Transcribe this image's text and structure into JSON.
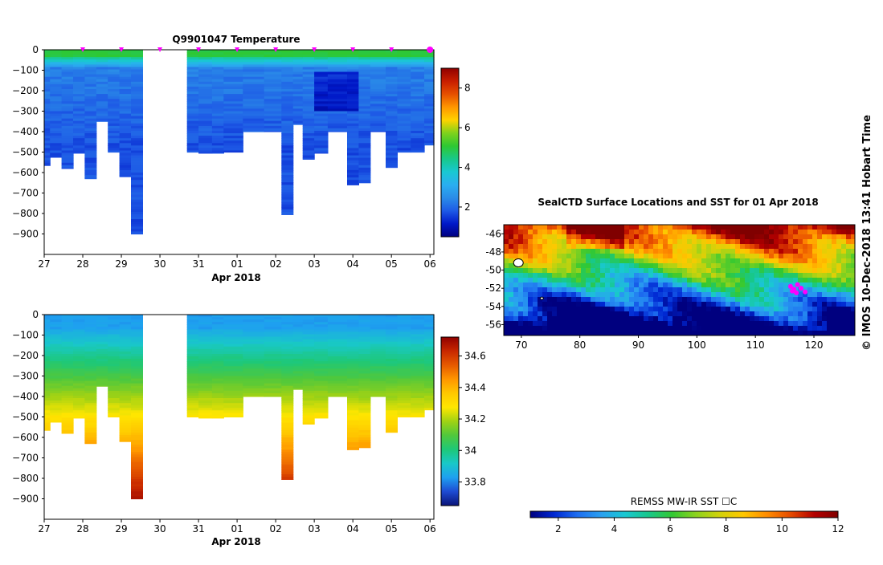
{
  "colors": {
    "temperature_scale": [
      "#00007f",
      "#0018c8",
      "#1e5ae6",
      "#2a8ce8",
      "#2aaef0",
      "#19c8d2",
      "#18c88a",
      "#2ec832",
      "#7fd21c",
      "#ffd200",
      "#ff9600",
      "#e65000",
      "#c81e00",
      "#900000"
    ],
    "salinity_scale": [
      "#0a1478",
      "#1e4bd2",
      "#1ea0f0",
      "#19c8c8",
      "#1ec878",
      "#50c83c",
      "#a0d214",
      "#ffe600",
      "#ffc800",
      "#ff9600",
      "#e65a00",
      "#c82800",
      "#900000"
    ],
    "sst_scale": [
      "#00007f",
      "#0028d2",
      "#1e6ef0",
      "#2aa0f0",
      "#19c8d2",
      "#18c88a",
      "#32c832",
      "#8cd21e",
      "#d2d20a",
      "#ffc800",
      "#ff8c00",
      "#e64b00",
      "#b40000",
      "#800000"
    ],
    "track": "#ff00ff"
  },
  "chart_data": [
    {
      "id": "temperature",
      "type": "heatmap",
      "title": "Q9901047  Temperature",
      "xlabel": "Apr 2018",
      "x_tick_labels": [
        "27",
        "28",
        "29",
        "30",
        "31",
        "01",
        "02",
        "03",
        "04",
        "05",
        "06"
      ],
      "y_tick_labels": [
        "0",
        "−100",
        "−200",
        "−300",
        "−400",
        "−500",
        "−600",
        "−700",
        "−800",
        "−900"
      ],
      "y_ticks": [
        0,
        -100,
        -200,
        -300,
        -400,
        -500,
        -600,
        -700,
        -800,
        -900
      ],
      "ylim": [
        -1000,
        0
      ],
      "xlim": [
        27,
        37.1
      ],
      "colorbar": {
        "min": 0.5,
        "max": 9.0,
        "ticks": [
          2,
          4,
          6,
          8
        ],
        "tick_labels": [
          "2",
          "4",
          "6",
          "8"
        ]
      },
      "profile_marks_day": [
        28,
        29,
        30,
        31,
        32,
        33,
        34,
        35,
        36,
        37
      ],
      "profiles": [
        {
          "day": 27.0,
          "max_depth": 565
        },
        {
          "day": 27.15,
          "max_depth": 525
        },
        {
          "day": 27.45,
          "max_depth": 580
        },
        {
          "day": 27.75,
          "max_depth": 505
        },
        {
          "day": 28.05,
          "max_depth": 630
        },
        {
          "day": 28.35,
          "max_depth": 350
        },
        {
          "day": 28.65,
          "max_depth": 500
        },
        {
          "day": 28.95,
          "max_depth": 620
        },
        {
          "day": 29.25,
          "max_depth": 900
        },
        {
          "day": 30.7,
          "max_depth": 500
        },
        {
          "day": 31.0,
          "max_depth": 505
        },
        {
          "day": 31.35,
          "max_depth": 505
        },
        {
          "day": 31.65,
          "max_depth": 500
        },
        {
          "day": 32.15,
          "max_depth": 400
        },
        {
          "day": 32.7,
          "max_depth": 400
        },
        {
          "day": 33.15,
          "max_depth": 805
        },
        {
          "day": 33.45,
          "max_depth": 365
        },
        {
          "day": 33.7,
          "max_depth": 535
        },
        {
          "day": 34.0,
          "max_depth": 505
        },
        {
          "day": 34.35,
          "max_depth": 400
        },
        {
          "day": 34.85,
          "max_depth": 660
        },
        {
          "day": 35.15,
          "max_depth": 650
        },
        {
          "day": 35.45,
          "max_depth": 400
        },
        {
          "day": 35.85,
          "max_depth": 575
        },
        {
          "day": 36.15,
          "max_depth": 500
        },
        {
          "day": 36.5,
          "max_depth": 500
        },
        {
          "day": 36.85,
          "max_depth": 465
        }
      ]
    },
    {
      "id": "salinity",
      "type": "heatmap",
      "title": "",
      "xlabel": "Apr 2018",
      "x_tick_labels": [
        "27",
        "28",
        "29",
        "30",
        "31",
        "01",
        "02",
        "03",
        "04",
        "05",
        "06"
      ],
      "y_tick_labels": [
        "0",
        "−100",
        "−200",
        "−300",
        "−400",
        "−500",
        "−600",
        "−700",
        "−800",
        "−900"
      ],
      "y_ticks": [
        0,
        -100,
        -200,
        -300,
        -400,
        -500,
        -600,
        -700,
        -800,
        -900
      ],
      "ylim": [
        -1000,
        0
      ],
      "xlim": [
        27,
        37.1
      ],
      "colorbar": {
        "min": 33.65,
        "max": 34.72,
        "ticks": [
          33.8,
          34,
          34.2,
          34.4,
          34.6
        ],
        "tick_labels": [
          "33.8",
          "34",
          "34.2",
          "34.4",
          "34.6"
        ]
      }
    },
    {
      "id": "sst_map",
      "type": "heatmap",
      "title": "SealCTD Surface Locations and SST for 01 Apr 2018",
      "x_tick_labels": [
        "70",
        "80",
        "90",
        "100",
        "110",
        "120"
      ],
      "x_ticks": [
        70,
        80,
        90,
        100,
        110,
        120
      ],
      "y_tick_labels": [
        "-46",
        "-48",
        "-50",
        "-52",
        "-54",
        "-56"
      ],
      "y_ticks": [
        -46,
        -48,
        -50,
        -52,
        -54,
        -56
      ],
      "xlim": [
        67,
        127
      ],
      "ylim": [
        -57.2,
        -45
      ],
      "colorbar": {
        "label": "REMSS MW-IR SST ☐C",
        "min": 1,
        "max": 12,
        "ticks": [
          2,
          4,
          6,
          8,
          10,
          12
        ],
        "tick_labels": [
          "2",
          "4",
          "6",
          "8",
          "10",
          "12"
        ]
      },
      "track_points": [
        [
          116,
          -51.8
        ],
        [
          116.6,
          -52.1
        ],
        [
          117.2,
          -51.6
        ],
        [
          117.8,
          -52.0
        ],
        [
          118.5,
          -52.4
        ],
        [
          116.3,
          -52.3
        ],
        [
          117.0,
          -52.5
        ]
      ]
    }
  ],
  "credit": "© IMOS 10-Dec-2018 13:41 Hobart Time"
}
